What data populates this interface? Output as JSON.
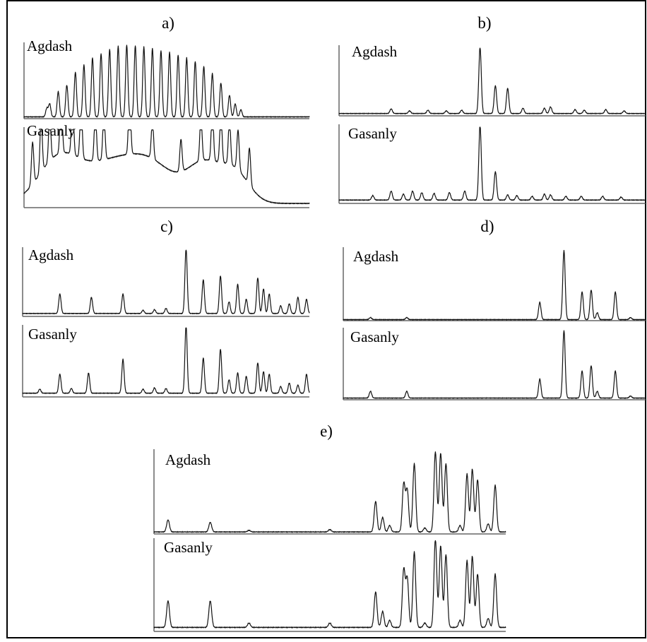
{
  "colors": {
    "trace": "#111111",
    "axis": "#666666",
    "frame": "#000000",
    "background": "#ffffff"
  },
  "chart_data": [
    {
      "type": "line",
      "panel": "a)",
      "title": "a)",
      "series": [
        {
          "name": "Agdash",
          "baseline": 0.02,
          "peaks": [
            [
              0.08,
              0.12,
              0.004
            ],
            [
              0.09,
              0.18,
              0.004
            ],
            [
              0.12,
              0.35,
              0.004
            ],
            [
              0.15,
              0.44,
              0.004
            ],
            [
              0.18,
              0.62,
              0.004
            ],
            [
              0.21,
              0.72,
              0.004
            ],
            [
              0.24,
              0.82,
              0.004
            ],
            [
              0.27,
              0.88,
              0.004
            ],
            [
              0.3,
              0.94,
              0.004
            ],
            [
              0.33,
              0.98,
              0.004
            ],
            [
              0.36,
              1.0,
              0.004
            ],
            [
              0.39,
              0.99,
              0.004
            ],
            [
              0.42,
              0.97,
              0.004
            ],
            [
              0.45,
              0.95,
              0.004
            ],
            [
              0.48,
              0.92,
              0.004
            ],
            [
              0.51,
              0.9,
              0.004
            ],
            [
              0.54,
              0.86,
              0.004
            ],
            [
              0.57,
              0.82,
              0.004
            ],
            [
              0.6,
              0.77,
              0.004
            ],
            [
              0.63,
              0.7,
              0.004
            ],
            [
              0.66,
              0.6,
              0.004
            ],
            [
              0.69,
              0.47,
              0.004
            ],
            [
              0.72,
              0.3,
              0.004
            ],
            [
              0.74,
              0.18,
              0.004
            ],
            [
              0.76,
              0.1,
              0.004
            ]
          ]
        },
        {
          "name": "Gasanly",
          "baseline": 0.05,
          "peaks": [
            [
              0.03,
              0.55,
              0.004
            ],
            [
              0.06,
              0.72,
              0.004
            ],
            [
              0.09,
              0.6,
              0.004
            ],
            [
              0.13,
              0.85,
              0.004
            ],
            [
              0.17,
              0.78,
              0.004
            ],
            [
              0.2,
              0.72,
              0.004
            ],
            [
              0.25,
              0.65,
              0.004
            ],
            [
              0.28,
              0.62,
              0.004
            ],
            [
              0.37,
              0.8,
              0.004
            ],
            [
              0.45,
              0.5,
              0.004
            ],
            [
              0.55,
              0.42,
              0.004
            ],
            [
              0.62,
              0.58,
              0.004
            ],
            [
              0.66,
              0.68,
              0.004
            ],
            [
              0.69,
              0.65,
              0.004
            ],
            [
              0.72,
              0.6,
              0.004
            ],
            [
              0.75,
              0.52,
              0.004
            ],
            [
              0.79,
              0.48,
              0.004
            ]
          ],
          "humps": [
            [
              0.12,
              0.55,
              0.07
            ],
            [
              0.3,
              0.5,
              0.1
            ],
            [
              0.45,
              0.42,
              0.08
            ],
            [
              0.63,
              0.5,
              0.06
            ],
            [
              0.74,
              0.38,
              0.05
            ]
          ]
        }
      ]
    },
    {
      "type": "line",
      "panel": "b)",
      "title": "b)",
      "series": [
        {
          "name": "Agdash",
          "baseline": 0.03,
          "peaks": [
            [
              0.17,
              0.07,
              0.004
            ],
            [
              0.23,
              0.04,
              0.004
            ],
            [
              0.29,
              0.05,
              0.004
            ],
            [
              0.35,
              0.04,
              0.004
            ],
            [
              0.4,
              0.05,
              0.004
            ],
            [
              0.46,
              1.0,
              0.004
            ],
            [
              0.51,
              0.42,
              0.004
            ],
            [
              0.55,
              0.38,
              0.004
            ],
            [
              0.6,
              0.08,
              0.004
            ],
            [
              0.67,
              0.08,
              0.004
            ],
            [
              0.69,
              0.1,
              0.004
            ],
            [
              0.77,
              0.06,
              0.004
            ],
            [
              0.8,
              0.05,
              0.004
            ],
            [
              0.87,
              0.06,
              0.004
            ],
            [
              0.93,
              0.04,
              0.004
            ]
          ]
        },
        {
          "name": "Gasanly",
          "baseline": 0.04,
          "peaks": [
            [
              0.11,
              0.06,
              0.004
            ],
            [
              0.17,
              0.12,
              0.004
            ],
            [
              0.21,
              0.08,
              0.004
            ],
            [
              0.24,
              0.12,
              0.004
            ],
            [
              0.27,
              0.1,
              0.004
            ],
            [
              0.31,
              0.09,
              0.004
            ],
            [
              0.36,
              0.1,
              0.004
            ],
            [
              0.41,
              0.12,
              0.004
            ],
            [
              0.46,
              1.0,
              0.004
            ],
            [
              0.51,
              0.38,
              0.004
            ],
            [
              0.55,
              0.07,
              0.004
            ],
            [
              0.58,
              0.06,
              0.004
            ],
            [
              0.63,
              0.05,
              0.004
            ],
            [
              0.67,
              0.08,
              0.004
            ],
            [
              0.69,
              0.07,
              0.004
            ],
            [
              0.74,
              0.05,
              0.004
            ],
            [
              0.79,
              0.05,
              0.004
            ],
            [
              0.86,
              0.05,
              0.004
            ],
            [
              0.92,
              0.04,
              0.004
            ]
          ]
        }
      ]
    },
    {
      "type": "line",
      "panel": "c)",
      "title": "c)",
      "series": [
        {
          "name": "Agdash",
          "baseline": 0.04,
          "peaks": [
            [
              0.13,
              0.3,
              0.004
            ],
            [
              0.24,
              0.25,
              0.004
            ],
            [
              0.35,
              0.3,
              0.004
            ],
            [
              0.42,
              0.05,
              0.004
            ],
            [
              0.46,
              0.06,
              0.004
            ],
            [
              0.5,
              0.08,
              0.004
            ],
            [
              0.57,
              1.0,
              0.004
            ],
            [
              0.63,
              0.52,
              0.004
            ],
            [
              0.69,
              0.58,
              0.004
            ],
            [
              0.72,
              0.18,
              0.004
            ],
            [
              0.75,
              0.45,
              0.004
            ],
            [
              0.78,
              0.22,
              0.004
            ],
            [
              0.82,
              0.55,
              0.004
            ],
            [
              0.84,
              0.38,
              0.004
            ],
            [
              0.86,
              0.3,
              0.004
            ],
            [
              0.9,
              0.12,
              0.004
            ],
            [
              0.93,
              0.15,
              0.004
            ],
            [
              0.96,
              0.25,
              0.004
            ],
            [
              0.99,
              0.22,
              0.004
            ]
          ]
        },
        {
          "name": "Gasanly",
          "baseline": 0.05,
          "peaks": [
            [
              0.06,
              0.06,
              0.004
            ],
            [
              0.13,
              0.28,
              0.004
            ],
            [
              0.17,
              0.07,
              0.004
            ],
            [
              0.23,
              0.3,
              0.004
            ],
            [
              0.35,
              0.5,
              0.004
            ],
            [
              0.42,
              0.06,
              0.004
            ],
            [
              0.46,
              0.08,
              0.004
            ],
            [
              0.5,
              0.07,
              0.004
            ],
            [
              0.57,
              1.0,
              0.004
            ],
            [
              0.63,
              0.52,
              0.004
            ],
            [
              0.69,
              0.65,
              0.004
            ],
            [
              0.72,
              0.2,
              0.004
            ],
            [
              0.75,
              0.3,
              0.004
            ],
            [
              0.78,
              0.25,
              0.004
            ],
            [
              0.82,
              0.45,
              0.004
            ],
            [
              0.84,
              0.32,
              0.004
            ],
            [
              0.86,
              0.28,
              0.004
            ],
            [
              0.9,
              0.1,
              0.004
            ],
            [
              0.93,
              0.15,
              0.004
            ],
            [
              0.96,
              0.12,
              0.004
            ],
            [
              0.99,
              0.28,
              0.004
            ]
          ]
        }
      ]
    },
    {
      "type": "line",
      "panel": "d)",
      "title": "d)",
      "series": [
        {
          "name": "Agdash",
          "baseline": 0.01,
          "peaks": [
            [
              0.09,
              0.03,
              0.004
            ],
            [
              0.21,
              0.03,
              0.004
            ],
            [
              0.65,
              0.25,
              0.004
            ],
            [
              0.73,
              1.0,
              0.004
            ],
            [
              0.79,
              0.4,
              0.004
            ],
            [
              0.82,
              0.43,
              0.004
            ],
            [
              0.84,
              0.1,
              0.004
            ],
            [
              0.9,
              0.4,
              0.004
            ],
            [
              0.95,
              0.03,
              0.004
            ]
          ]
        },
        {
          "name": "Gasanly",
          "baseline": 0.02,
          "peaks": [
            [
              0.09,
              0.1,
              0.004
            ],
            [
              0.21,
              0.1,
              0.004
            ],
            [
              0.65,
              0.28,
              0.004
            ],
            [
              0.73,
              1.0,
              0.004
            ],
            [
              0.79,
              0.4,
              0.004
            ],
            [
              0.82,
              0.48,
              0.004
            ],
            [
              0.84,
              0.1,
              0.004
            ],
            [
              0.9,
              0.4,
              0.004
            ],
            [
              0.95,
              0.03,
              0.004
            ]
          ]
        }
      ]
    },
    {
      "type": "line",
      "panel": "e)",
      "title": "e)",
      "series": [
        {
          "name": "Agdash",
          "baseline": 0.02,
          "peaks": [
            [
              0.04,
              0.15,
              0.004
            ],
            [
              0.16,
              0.12,
              0.004
            ],
            [
              0.27,
              0.02,
              0.004
            ],
            [
              0.5,
              0.03,
              0.004
            ],
            [
              0.63,
              0.38,
              0.004
            ],
            [
              0.65,
              0.18,
              0.004
            ],
            [
              0.67,
              0.08,
              0.004
            ],
            [
              0.71,
              0.6,
              0.004
            ],
            [
              0.72,
              0.52,
              0.004
            ],
            [
              0.74,
              0.85,
              0.004
            ],
            [
              0.77,
              0.05,
              0.004
            ],
            [
              0.8,
              1.0,
              0.004
            ],
            [
              0.815,
              0.98,
              0.004
            ],
            [
              0.83,
              0.85,
              0.004
            ],
            [
              0.87,
              0.08,
              0.004
            ],
            [
              0.89,
              0.72,
              0.004
            ],
            [
              0.905,
              0.78,
              0.004
            ],
            [
              0.92,
              0.65,
              0.004
            ],
            [
              0.95,
              0.1,
              0.004
            ],
            [
              0.97,
              0.58,
              0.004
            ]
          ]
        },
        {
          "name": "Gasanly",
          "baseline": 0.04,
          "peaks": [
            [
              0.04,
              0.3,
              0.004
            ],
            [
              0.16,
              0.3,
              0.004
            ],
            [
              0.27,
              0.05,
              0.004
            ],
            [
              0.5,
              0.05,
              0.004
            ],
            [
              0.63,
              0.4,
              0.004
            ],
            [
              0.65,
              0.18,
              0.004
            ],
            [
              0.67,
              0.08,
              0.004
            ],
            [
              0.71,
              0.65,
              0.004
            ],
            [
              0.72,
              0.55,
              0.004
            ],
            [
              0.74,
              0.85,
              0.004
            ],
            [
              0.77,
              0.05,
              0.004
            ],
            [
              0.8,
              1.0,
              0.004
            ],
            [
              0.815,
              0.92,
              0.004
            ],
            [
              0.83,
              0.82,
              0.004
            ],
            [
              0.87,
              0.08,
              0.004
            ],
            [
              0.89,
              0.75,
              0.004
            ],
            [
              0.905,
              0.8,
              0.004
            ],
            [
              0.92,
              0.6,
              0.004
            ],
            [
              0.95,
              0.1,
              0.004
            ],
            [
              0.97,
              0.6,
              0.004
            ]
          ]
        }
      ]
    }
  ]
}
